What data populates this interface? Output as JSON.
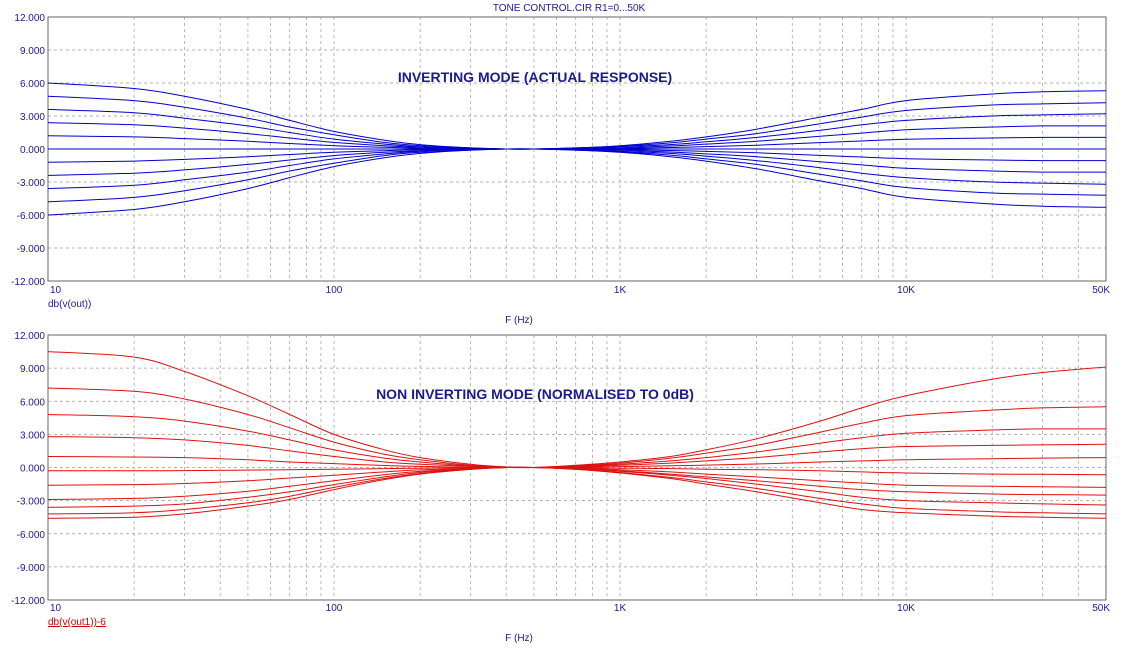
{
  "window": {
    "title": "TONE CONTROL.CIR R1=0...50K"
  },
  "chart_data": [
    {
      "type": "line",
      "title": "INVERTING MODE (ACTUAL RESPONSE)",
      "xlabel": "F (Hz)",
      "ylabel": "db(v(out))",
      "x_scale": "log",
      "xlim": [
        10,
        50000
      ],
      "ylim": [
        -12,
        12
      ],
      "x_ticks": [
        "10",
        "100",
        "1K",
        "10K",
        "50K"
      ],
      "x_tick_values": [
        10,
        100,
        1000,
        10000,
        50000
      ],
      "y_ticks": [
        "12.000",
        "9.000",
        "6.000",
        "3.000",
        "0.000",
        "-3.000",
        "-6.000",
        "-9.000",
        "-12.000"
      ],
      "y_tick_values": [
        12,
        9,
        6,
        3,
        0,
        -3,
        -6,
        -9,
        -12
      ],
      "grid": true,
      "color": "#0000cc",
      "x": [
        10,
        20,
        30,
        50,
        70,
        100,
        150,
        200,
        300,
        400,
        500,
        700,
        1000,
        1500,
        2000,
        3000,
        5000,
        7000,
        10000,
        20000,
        30000,
        50000
      ],
      "series": [
        {
          "values": [
            6.0,
            5.5,
            4.8,
            3.6,
            2.6,
            1.6,
            0.8,
            0.4,
            0.1,
            0.0,
            0.0,
            0.1,
            0.3,
            0.7,
            1.1,
            1.8,
            2.9,
            3.6,
            4.4,
            5.0,
            5.2,
            5.3
          ]
        },
        {
          "values": [
            4.8,
            4.4,
            3.8,
            2.8,
            2.0,
            1.3,
            0.6,
            0.3,
            0.1,
            0.0,
            0.0,
            0.1,
            0.25,
            0.55,
            0.9,
            1.4,
            2.3,
            2.9,
            3.5,
            4.0,
            4.1,
            4.2
          ]
        },
        {
          "values": [
            3.6,
            3.3,
            2.8,
            2.1,
            1.5,
            0.9,
            0.45,
            0.2,
            0.05,
            0.0,
            0.0,
            0.05,
            0.2,
            0.4,
            0.65,
            1.05,
            1.7,
            2.2,
            2.6,
            3.0,
            3.1,
            3.2
          ]
        },
        {
          "values": [
            2.4,
            2.2,
            1.9,
            1.4,
            1.0,
            0.6,
            0.3,
            0.15,
            0.03,
            0.0,
            0.0,
            0.03,
            0.12,
            0.27,
            0.45,
            0.7,
            1.15,
            1.45,
            1.75,
            2.0,
            2.1,
            2.1
          ]
        },
        {
          "values": [
            1.2,
            1.1,
            0.95,
            0.7,
            0.5,
            0.3,
            0.15,
            0.07,
            0.02,
            0.0,
            0.0,
            0.02,
            0.06,
            0.14,
            0.22,
            0.35,
            0.58,
            0.73,
            0.88,
            1.0,
            1.05,
            1.05
          ]
        },
        {
          "values": [
            0,
            0,
            0,
            0,
            0,
            0,
            0,
            0,
            0,
            0,
            0,
            0,
            0,
            0,
            0,
            0,
            0,
            0,
            0,
            0,
            0,
            0
          ]
        },
        {
          "values": [
            -1.2,
            -1.1,
            -0.95,
            -0.7,
            -0.5,
            -0.3,
            -0.15,
            -0.07,
            -0.02,
            0.0,
            0.0,
            -0.02,
            -0.06,
            -0.14,
            -0.22,
            -0.35,
            -0.58,
            -0.73,
            -0.88,
            -1.0,
            -1.05,
            -1.05
          ]
        },
        {
          "values": [
            -2.4,
            -2.2,
            -1.9,
            -1.4,
            -1.0,
            -0.6,
            -0.3,
            -0.15,
            -0.03,
            0.0,
            0.0,
            -0.03,
            -0.12,
            -0.27,
            -0.45,
            -0.7,
            -1.15,
            -1.45,
            -1.75,
            -2.0,
            -2.1,
            -2.1
          ]
        },
        {
          "values": [
            -3.6,
            -3.3,
            -2.8,
            -2.1,
            -1.5,
            -0.9,
            -0.45,
            -0.2,
            -0.05,
            0.0,
            0.0,
            -0.05,
            -0.2,
            -0.4,
            -0.65,
            -1.05,
            -1.7,
            -2.2,
            -2.6,
            -3.0,
            -3.1,
            -3.2
          ]
        },
        {
          "values": [
            -4.8,
            -4.4,
            -3.8,
            -2.8,
            -2.0,
            -1.3,
            -0.6,
            -0.3,
            -0.1,
            0.0,
            0.0,
            -0.1,
            -0.25,
            -0.55,
            -0.9,
            -1.4,
            -2.3,
            -2.9,
            -3.5,
            -4.0,
            -4.1,
            -4.2
          ]
        },
        {
          "values": [
            -6.0,
            -5.5,
            -4.8,
            -3.6,
            -2.6,
            -1.6,
            -0.8,
            -0.4,
            -0.1,
            0.0,
            0.0,
            -0.1,
            -0.3,
            -0.7,
            -1.1,
            -1.8,
            -2.9,
            -3.6,
            -4.4,
            -5.0,
            -5.2,
            -5.3
          ]
        }
      ]
    },
    {
      "type": "line",
      "title": "NON INVERTING MODE (NORMALISED TO 0dB)",
      "xlabel": "F (Hz)",
      "ylabel": "db(v(out1))-6",
      "x_scale": "log",
      "xlim": [
        10,
        50000
      ],
      "ylim": [
        -12,
        12
      ],
      "x_ticks": [
        "10",
        "100",
        "1K",
        "10K",
        "50K"
      ],
      "x_tick_values": [
        10,
        100,
        1000,
        10000,
        50000
      ],
      "y_ticks": [
        "12.000",
        "9.000",
        "6.000",
        "3.000",
        "0.000",
        "-3.000",
        "-6.000",
        "-9.000",
        "-12.000"
      ],
      "y_tick_values": [
        12,
        9,
        6,
        3,
        0,
        -3,
        -6,
        -9,
        -12
      ],
      "grid": true,
      "color": "#dd1111",
      "x": [
        10,
        20,
        30,
        50,
        70,
        100,
        150,
        200,
        300,
        400,
        500,
        700,
        1000,
        1500,
        2000,
        3000,
        5000,
        7000,
        10000,
        20000,
        30000,
        50000
      ],
      "series": [
        {
          "values": [
            10.5,
            10.0,
            8.7,
            6.5,
            4.8,
            3.0,
            1.6,
            0.9,
            0.3,
            0.05,
            0.0,
            0.2,
            0.5,
            1.0,
            1.6,
            2.6,
            4.2,
            5.4,
            6.5,
            8.0,
            8.6,
            9.1
          ]
        },
        {
          "values": [
            7.2,
            6.9,
            6.2,
            4.8,
            3.6,
            2.3,
            1.2,
            0.7,
            0.2,
            0.03,
            0.0,
            0.15,
            0.4,
            0.85,
            1.3,
            2.0,
            3.2,
            4.0,
            4.7,
            5.2,
            5.4,
            5.5
          ]
        },
        {
          "values": [
            4.8,
            4.6,
            4.2,
            3.3,
            2.5,
            1.6,
            0.85,
            0.5,
            0.15,
            0.02,
            0.0,
            0.1,
            0.3,
            0.6,
            0.9,
            1.4,
            2.2,
            2.7,
            3.1,
            3.4,
            3.5,
            3.5
          ]
        },
        {
          "values": [
            2.8,
            2.7,
            2.5,
            2.0,
            1.5,
            1.0,
            0.5,
            0.3,
            0.1,
            0.01,
            0.0,
            0.07,
            0.2,
            0.4,
            0.6,
            0.9,
            1.4,
            1.7,
            1.9,
            2.0,
            2.05,
            2.1
          ]
        },
        {
          "values": [
            1.0,
            0.95,
            0.9,
            0.7,
            0.5,
            0.35,
            0.18,
            0.1,
            0.03,
            0.0,
            0.0,
            0.03,
            0.08,
            0.15,
            0.22,
            0.32,
            0.5,
            0.6,
            0.7,
            0.8,
            0.85,
            0.9
          ]
        },
        {
          "values": [
            -0.3,
            -0.3,
            -0.28,
            -0.24,
            -0.2,
            -0.15,
            -0.1,
            -0.06,
            -0.02,
            0.0,
            0.0,
            -0.02,
            -0.06,
            -0.1,
            -0.15,
            -0.2,
            -0.3,
            -0.4,
            -0.5,
            -0.6,
            -0.62,
            -0.65
          ]
        },
        {
          "values": [
            -1.6,
            -1.55,
            -1.45,
            -1.2,
            -0.95,
            -0.7,
            -0.4,
            -0.22,
            -0.07,
            0.0,
            0.0,
            -0.07,
            -0.2,
            -0.4,
            -0.6,
            -0.85,
            -1.2,
            -1.4,
            -1.6,
            -1.7,
            -1.75,
            -1.8
          ]
        },
        {
          "values": [
            -2.9,
            -2.8,
            -2.6,
            -2.15,
            -1.7,
            -1.2,
            -0.65,
            -0.35,
            -0.1,
            0.0,
            0.0,
            -0.1,
            -0.3,
            -0.6,
            -0.85,
            -1.2,
            -1.7,
            -2.0,
            -2.2,
            -2.4,
            -2.45,
            -2.5
          ]
        },
        {
          "values": [
            -3.6,
            -3.5,
            -3.3,
            -2.7,
            -2.2,
            -1.55,
            -0.85,
            -0.45,
            -0.13,
            0.0,
            0.0,
            -0.12,
            -0.35,
            -0.7,
            -1.0,
            -1.5,
            -2.2,
            -2.7,
            -3.0,
            -3.2,
            -3.3,
            -3.4
          ]
        },
        {
          "values": [
            -4.2,
            -4.1,
            -3.8,
            -3.2,
            -2.6,
            -1.8,
            -1.0,
            -0.55,
            -0.15,
            0.0,
            0.0,
            -0.15,
            -0.45,
            -0.9,
            -1.3,
            -1.9,
            -2.8,
            -3.3,
            -3.7,
            -4.0,
            -4.1,
            -4.2
          ]
        },
        {
          "values": [
            -4.6,
            -4.5,
            -4.2,
            -3.5,
            -2.9,
            -2.0,
            -1.1,
            -0.6,
            -0.17,
            0.0,
            0.0,
            -0.17,
            -0.5,
            -1.0,
            -1.5,
            -2.2,
            -3.2,
            -3.8,
            -4.1,
            -4.4,
            -4.5,
            -4.6
          ]
        }
      ]
    }
  ]
}
